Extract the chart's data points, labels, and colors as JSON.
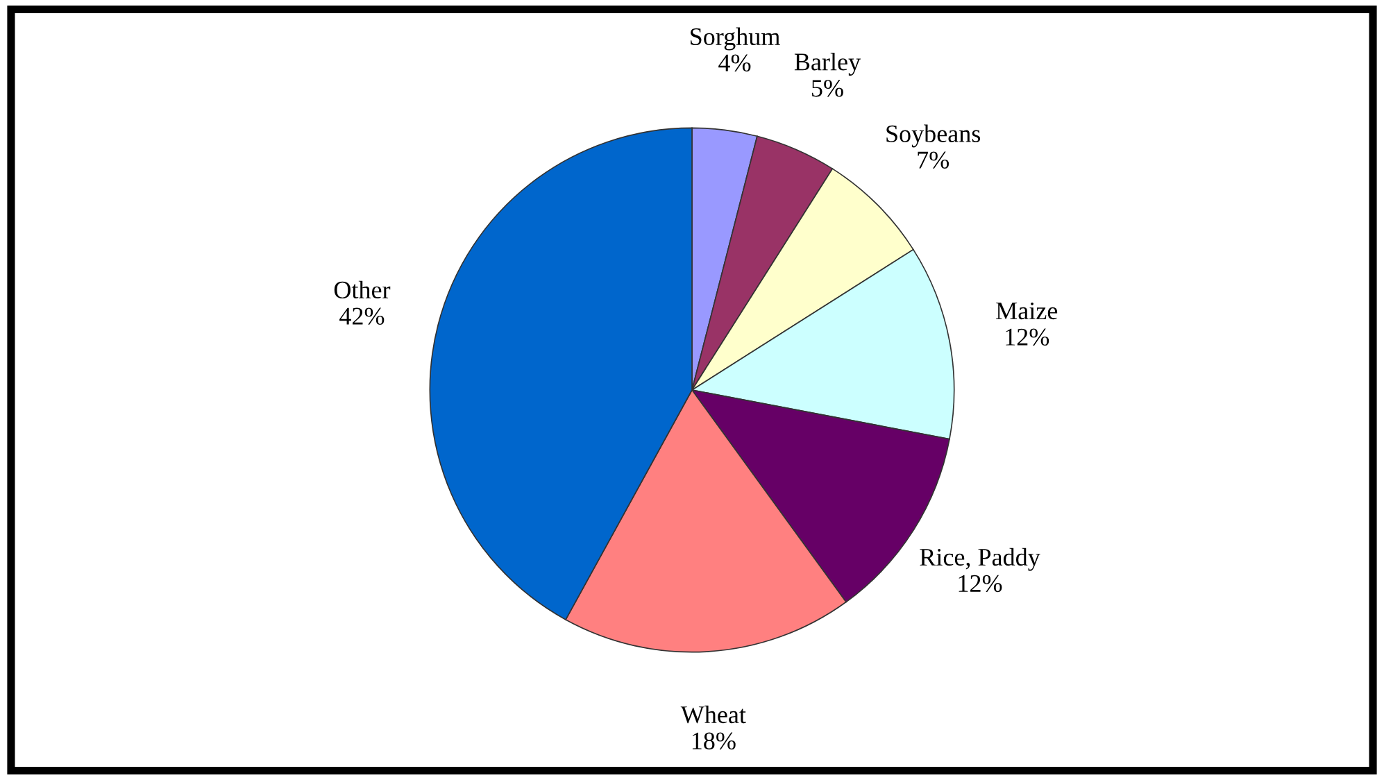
{
  "chart_data": {
    "type": "pie",
    "categories": [
      "Sorghum",
      "Barley",
      "Soybeans",
      "Maize",
      "Rice, Paddy",
      "Wheat",
      "Other"
    ],
    "values": [
      4,
      5,
      7,
      12,
      12,
      18,
      42
    ],
    "value_labels": [
      "4%",
      "5%",
      "7%",
      "12%",
      "12%",
      "18%",
      "42%"
    ],
    "colors": [
      "#9999ff",
      "#993366",
      "#ffffcc",
      "#ccffff",
      "#660066",
      "#ff8080",
      "#0066cc"
    ]
  }
}
